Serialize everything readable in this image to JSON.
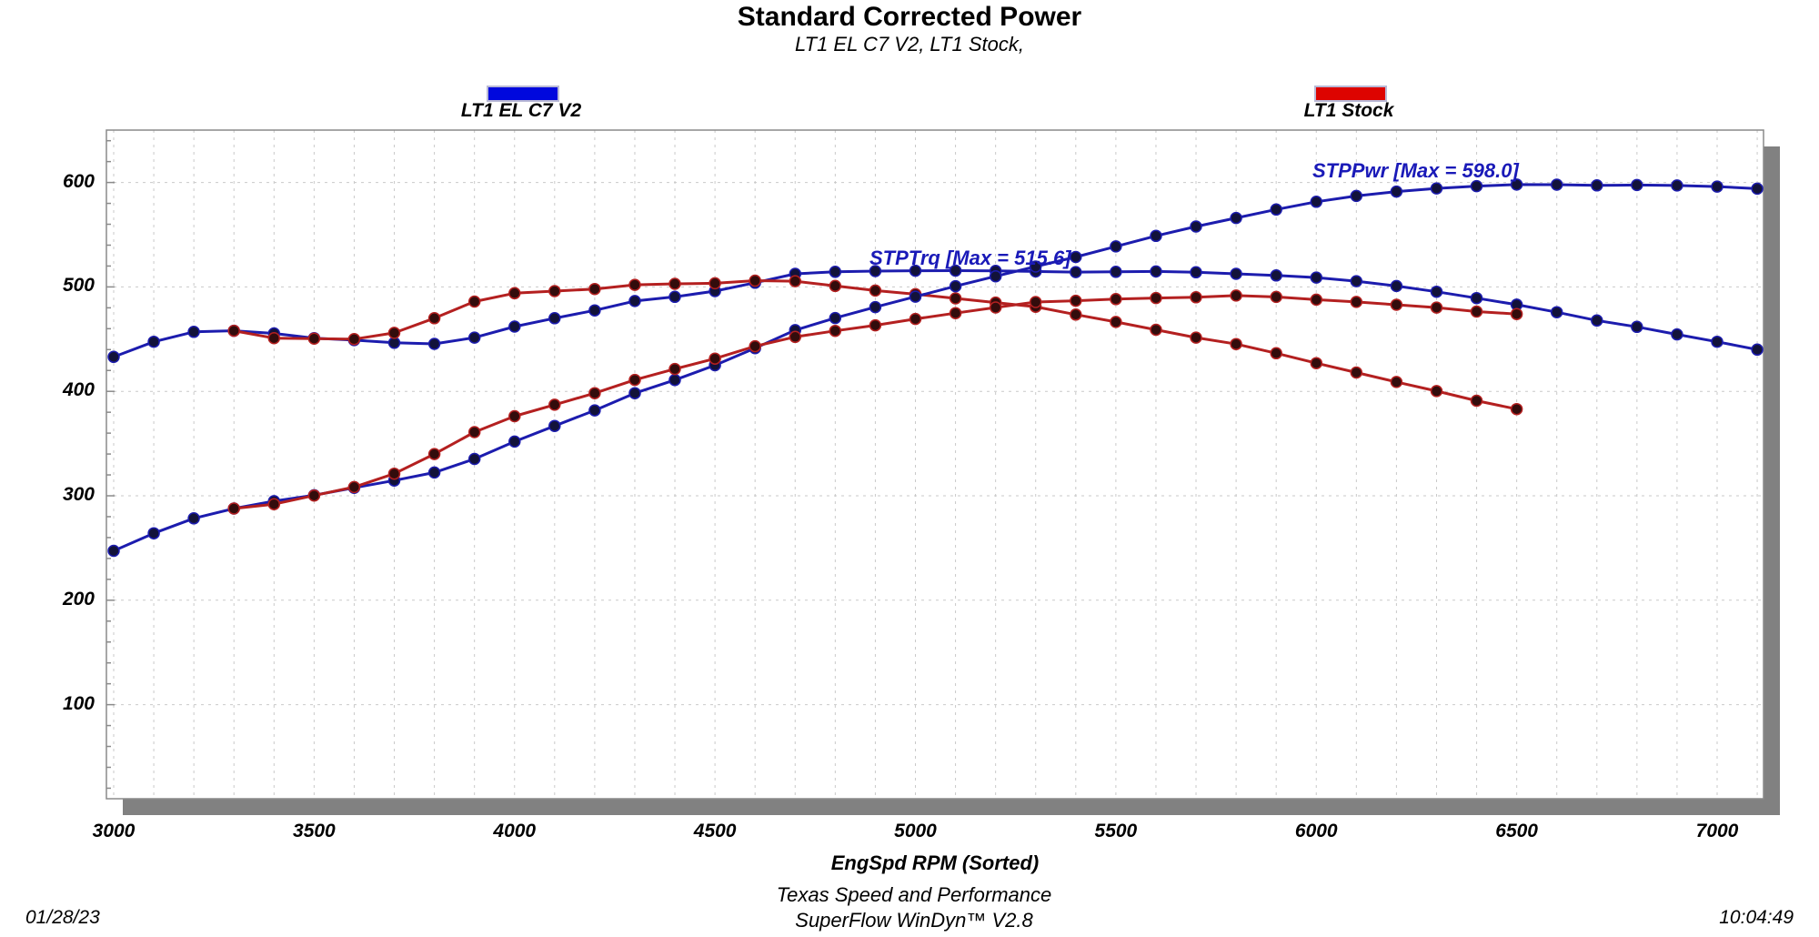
{
  "title": "Standard Corrected Power",
  "subtitle": "LT1 EL C7 V2, LT1 Stock,",
  "legend": [
    {
      "label": "LT1 EL C7 V2",
      "color": "#0008dd"
    },
    {
      "label": "LT1 Stock",
      "color": "#dd0400"
    }
  ],
  "annotations": [
    {
      "text": "STPPwr [Max = 598.0]"
    },
    {
      "text": "STPTrq [Max = 515.6]"
    }
  ],
  "footer": {
    "facility": "Texas Speed and Performance",
    "software": "SuperFlow WinDyn™ V2.8",
    "date": "01/28/23",
    "time": "10:04:49"
  },
  "chart_data": {
    "type": "line",
    "title": "Standard Corrected Power",
    "xlabel": "EngSpd  RPM   (Sorted)",
    "ylabel": "",
    "x_ticks": [
      3000,
      3500,
      4000,
      4500,
      5000,
      5500,
      6000,
      6500,
      7000
    ],
    "y_ticks": [
      100,
      200,
      300,
      400,
      500,
      600
    ],
    "xlim": [
      2982,
      7115
    ],
    "ylim": [
      10,
      650
    ],
    "grid": "dashed light-gray; vertical minor every 100 RPM, horizontal every 100",
    "legend_position": "top",
    "colors": {
      "grid": "#c9c9c9",
      "border": "#8a8a8a",
      "shadow": "#818181",
      "blue_line": "#1c1cae",
      "blue_marker": "#12123a",
      "red_line": "#b42020",
      "red_marker": "#330c0c"
    },
    "series": [
      {
        "name": "STPTrq LT1 EL C7 V2",
        "run": "LT1 EL C7 V2",
        "color": "#1c1cae",
        "marker": "#12123a",
        "max": 515.6,
        "x": [
          3000,
          3100,
          3200,
          3300,
          3400,
          3500,
          3600,
          3700,
          3800,
          3900,
          4000,
          4100,
          4200,
          4300,
          4400,
          4500,
          4600,
          4700,
          4800,
          4900,
          5000,
          5100,
          5200,
          5300,
          5400,
          5500,
          5600,
          5700,
          5800,
          5900,
          6000,
          6100,
          6200,
          6300,
          6400,
          6500,
          6600,
          6700,
          6800,
          6900,
          7000,
          7100
        ],
        "values": [
          433,
          447.5,
          457,
          458,
          455.5,
          451,
          449,
          446.5,
          445.5,
          451.5,
          462,
          470,
          477.5,
          486.5,
          490.5,
          496,
          504,
          512.5,
          514.5,
          515.2,
          515.5,
          515.6,
          515.3,
          514.8,
          514.2,
          514.5,
          514.8,
          514,
          512.5,
          511,
          509,
          505.5,
          500.9,
          495.4,
          489.3,
          483,
          475.8,
          467.9,
          461.8,
          454.5,
          447.5,
          440
        ]
      },
      {
        "name": "STPTrq LT1 Stock",
        "run": "LT1 Stock",
        "color": "#b42020",
        "marker": "#330c0c",
        "max": 506,
        "x": [
          3300,
          3400,
          3500,
          3600,
          3700,
          3800,
          3900,
          4000,
          4100,
          4200,
          4300,
          4400,
          4500,
          4600,
          4700,
          4800,
          4900,
          5000,
          5100,
          5200,
          5300,
          5400,
          5500,
          5600,
          5700,
          5800,
          5900,
          6000,
          6100,
          6200,
          6300,
          6400,
          6500
        ],
        "values": [
          458,
          451,
          450.5,
          450,
          456,
          470,
          486,
          494,
          496,
          498,
          502,
          503,
          503.5,
          506,
          505.5,
          501,
          496.5,
          493,
          489,
          485,
          481,
          473.5,
          466.5,
          459,
          451.5,
          445.3,
          436.5,
          427,
          418,
          409,
          400.3,
          391,
          383
        ]
      },
      {
        "name": "STPPwr LT1 EL C7 V2",
        "run": "LT1 EL C7 V2",
        "color": "#1c1cae",
        "marker": "#12123a",
        "max": 598.0,
        "x": [
          3000,
          3100,
          3200,
          3300,
          3400,
          3500,
          3600,
          3700,
          3800,
          3900,
          4000,
          4100,
          4200,
          4300,
          4400,
          4500,
          4600,
          4700,
          4800,
          4900,
          5000,
          5100,
          5200,
          5300,
          5400,
          5500,
          5600,
          5700,
          5800,
          5900,
          6000,
          6100,
          6200,
          6300,
          6400,
          6500,
          6600,
          6700,
          6800,
          6900,
          7000,
          7100
        ],
        "values": [
          247.3,
          264.1,
          278.4,
          287.8,
          294.9,
          300.5,
          307.7,
          314.6,
          322.3,
          335.3,
          351.9,
          366.9,
          381.8,
          398.3,
          410.9,
          425,
          441.4,
          458.6,
          470.2,
          480.7,
          490.7,
          500.7,
          510.2,
          519.5,
          528.7,
          538.8,
          548.9,
          557.8,
          566,
          574.1,
          581.5,
          587.1,
          591.3,
          594.3,
          596.5,
          598,
          597.9,
          597.2,
          597.6,
          597.1,
          596.1,
          594.1
        ]
      },
      {
        "name": "STPPwr LT1 Stock",
        "run": "LT1 Stock",
        "color": "#b42020",
        "marker": "#330c0c",
        "max": 491.7,
        "x": [
          3300,
          3400,
          3500,
          3600,
          3700,
          3800,
          3900,
          4000,
          4100,
          4200,
          4300,
          4400,
          4500,
          4600,
          4700,
          4800,
          4900,
          5000,
          5100,
          5200,
          5300,
          5400,
          5500,
          5600,
          5700,
          5800,
          5900,
          6000,
          6100,
          6200,
          6300,
          6400,
          6500
        ],
        "values": [
          287.8,
          292,
          300.3,
          308.4,
          321.2,
          340,
          361,
          376.2,
          387.2,
          398.3,
          411,
          421.4,
          431.4,
          443.2,
          452.2,
          457.9,
          463.2,
          469.3,
          474.9,
          480.3,
          485.5,
          486.8,
          488.3,
          489.4,
          490.1,
          491.7,
          490.4,
          487.8,
          485.6,
          482.9,
          480.2,
          476.4,
          474
        ]
      }
    ]
  }
}
